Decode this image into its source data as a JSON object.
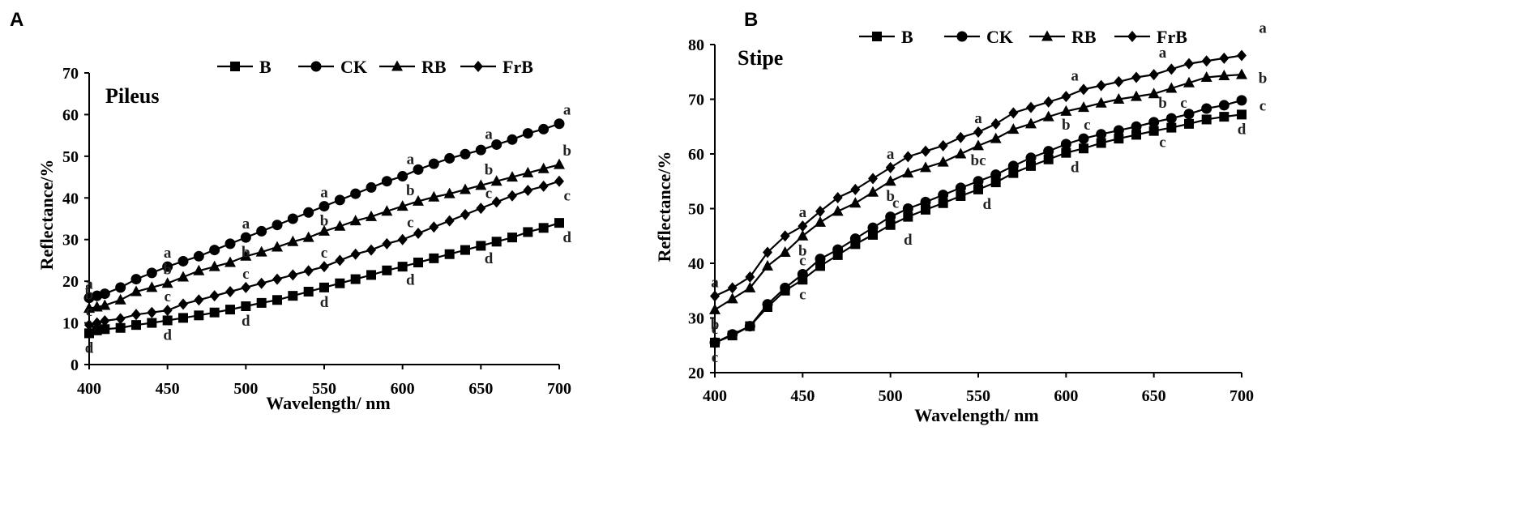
{
  "chart_data": [
    {
      "panel": "A",
      "type": "line",
      "title": "Pileus",
      "xlabel": "Wavelength/ nm",
      "ylabel": "Reflectance/%",
      "xlim": [
        400,
        700
      ],
      "ylim": [
        0,
        70
      ],
      "xticks": [
        400,
        450,
        500,
        550,
        600,
        650,
        700
      ],
      "yticks": [
        0,
        10,
        20,
        30,
        40,
        50,
        60,
        70
      ],
      "legend": [
        "B",
        "CK",
        "RB",
        "FrB"
      ],
      "legend_position": "top",
      "series": [
        {
          "name": "B",
          "marker": "square",
          "x": [
            400,
            405,
            410,
            420,
            430,
            440,
            450,
            460,
            470,
            480,
            490,
            500,
            510,
            520,
            530,
            540,
            550,
            560,
            570,
            580,
            590,
            600,
            610,
            620,
            630,
            640,
            650,
            660,
            670,
            680,
            690,
            700
          ],
          "y": [
            7.5,
            8.2,
            8.5,
            8.8,
            9.5,
            10.0,
            10.6,
            11.2,
            11.8,
            12.5,
            13.2,
            14.0,
            14.8,
            15.5,
            16.5,
            17.5,
            18.5,
            19.5,
            20.5,
            21.5,
            22.6,
            23.5,
            24.5,
            25.5,
            26.5,
            27.5,
            28.5,
            29.5,
            30.5,
            31.8,
            32.8,
            34.0
          ]
        },
        {
          "name": "CK",
          "marker": "circle",
          "x": [
            400,
            405,
            410,
            420,
            430,
            440,
            450,
            460,
            470,
            480,
            490,
            500,
            510,
            520,
            530,
            540,
            550,
            560,
            570,
            580,
            590,
            600,
            610,
            620,
            630,
            640,
            650,
            660,
            670,
            680,
            690,
            700
          ],
          "y": [
            16.0,
            16.5,
            17.0,
            18.5,
            20.5,
            22.0,
            23.5,
            24.8,
            26.0,
            27.5,
            29.0,
            30.5,
            32.0,
            33.5,
            35.0,
            36.5,
            38.0,
            39.5,
            41.0,
            42.5,
            44.0,
            45.2,
            46.8,
            48.2,
            49.5,
            50.5,
            51.5,
            52.8,
            54.0,
            55.5,
            56.5,
            57.8
          ]
        },
        {
          "name": "RB",
          "marker": "triangle",
          "x": [
            400,
            405,
            410,
            420,
            430,
            440,
            450,
            460,
            470,
            480,
            490,
            500,
            510,
            520,
            530,
            540,
            550,
            560,
            570,
            580,
            590,
            600,
            610,
            620,
            630,
            640,
            650,
            660,
            670,
            680,
            690,
            700
          ],
          "y": [
            13.5,
            13.8,
            14.2,
            15.5,
            17.5,
            18.5,
            19.5,
            21.0,
            22.5,
            23.5,
            24.5,
            26.0,
            27.0,
            28.2,
            29.5,
            30.5,
            32.0,
            33.2,
            34.5,
            35.5,
            36.8,
            38.0,
            39.2,
            40.2,
            41.0,
            42.0,
            43.0,
            44.0,
            45.0,
            46.0,
            47.0,
            48.0
          ]
        },
        {
          "name": "FrB",
          "marker": "diamond",
          "x": [
            400,
            405,
            410,
            420,
            430,
            440,
            450,
            460,
            470,
            480,
            490,
            500,
            510,
            520,
            530,
            540,
            550,
            560,
            570,
            580,
            590,
            600,
            610,
            620,
            630,
            640,
            650,
            660,
            670,
            680,
            690,
            700
          ],
          "y": [
            9.5,
            10.0,
            10.5,
            11.0,
            12.0,
            12.5,
            13.0,
            14.5,
            15.5,
            16.5,
            17.5,
            18.5,
            19.5,
            20.5,
            21.5,
            22.5,
            23.5,
            25.0,
            26.5,
            27.5,
            29.0,
            30.0,
            31.5,
            33.0,
            34.5,
            36.0,
            37.5,
            39.0,
            40.5,
            41.8,
            42.8,
            44.0
          ]
        }
      ],
      "annotations": [
        {
          "x": 400,
          "y": 16.0,
          "label": "a",
          "pos": "above"
        },
        {
          "x": 400,
          "y": 13.5,
          "label": "b",
          "pos": "above"
        },
        {
          "x": 400,
          "y": 9.5,
          "label": "c",
          "pos": "above"
        },
        {
          "x": 400,
          "y": 7.5,
          "label": "d",
          "pos": "below"
        },
        {
          "x": 450,
          "y": 23.5,
          "label": "a",
          "pos": "above"
        },
        {
          "x": 450,
          "y": 19.5,
          "label": "b",
          "pos": "above"
        },
        {
          "x": 450,
          "y": 13.0,
          "label": "c",
          "pos": "above"
        },
        {
          "x": 450,
          "y": 10.6,
          "label": "d",
          "pos": "below"
        },
        {
          "x": 500,
          "y": 30.5,
          "label": "a",
          "pos": "above"
        },
        {
          "x": 500,
          "y": 30.5,
          "label": "b",
          "pos": "below"
        },
        {
          "x": 500,
          "y": 18.5,
          "label": "c",
          "pos": "above"
        },
        {
          "x": 500,
          "y": 14.0,
          "label": "d",
          "pos": "below"
        },
        {
          "x": 550,
          "y": 38.0,
          "label": "a",
          "pos": "above"
        },
        {
          "x": 550,
          "y": 38.0,
          "label": "b",
          "pos": "below"
        },
        {
          "x": 550,
          "y": 23.5,
          "label": "c",
          "pos": "above"
        },
        {
          "x": 550,
          "y": 18.5,
          "label": "d",
          "pos": "below"
        },
        {
          "x": 605,
          "y": 46.0,
          "label": "a",
          "pos": "above"
        },
        {
          "x": 605,
          "y": 38.5,
          "label": "b",
          "pos": "above"
        },
        {
          "x": 605,
          "y": 30.8,
          "label": "c",
          "pos": "above"
        },
        {
          "x": 605,
          "y": 23.8,
          "label": "d",
          "pos": "below"
        },
        {
          "x": 655,
          "y": 52.0,
          "label": "a",
          "pos": "above"
        },
        {
          "x": 655,
          "y": 43.5,
          "label": "b",
          "pos": "above"
        },
        {
          "x": 655,
          "y": 37.8,
          "label": "c",
          "pos": "above"
        },
        {
          "x": 655,
          "y": 29.0,
          "label": "d",
          "pos": "below"
        },
        {
          "x": 705,
          "y": 57.8,
          "label": "a",
          "pos": "above"
        },
        {
          "x": 705,
          "y": 48.0,
          "label": "b",
          "pos": "above"
        },
        {
          "x": 705,
          "y": 44.0,
          "label": "c",
          "pos": "below"
        },
        {
          "x": 705,
          "y": 34.0,
          "label": "d",
          "pos": "below"
        }
      ]
    },
    {
      "panel": "B",
      "type": "line",
      "title": "Stipe",
      "xlabel": "Wavelength/ nm",
      "ylabel": "Reflectance/%",
      "xlim": [
        400,
        700
      ],
      "ylim": [
        20,
        80
      ],
      "xticks": [
        400,
        450,
        500,
        550,
        600,
        650,
        700
      ],
      "yticks": [
        20,
        30,
        40,
        50,
        60,
        70,
        80
      ],
      "legend": [
        "B",
        "CK",
        "RB",
        "FrB"
      ],
      "legend_position": "top",
      "series": [
        {
          "name": "B",
          "marker": "square",
          "x": [
            400,
            410,
            420,
            430,
            440,
            450,
            460,
            470,
            480,
            490,
            500,
            510,
            520,
            530,
            540,
            550,
            560,
            570,
            580,
            590,
            600,
            610,
            620,
            630,
            640,
            650,
            660,
            670,
            680,
            690,
            700
          ],
          "y": [
            25.5,
            26.8,
            28.5,
            32.0,
            35.0,
            37.0,
            39.5,
            41.5,
            43.5,
            45.2,
            47.0,
            48.5,
            49.8,
            51.0,
            52.3,
            53.5,
            54.8,
            56.5,
            57.8,
            59.0,
            60.2,
            61.0,
            62.0,
            62.8,
            63.5,
            64.2,
            64.8,
            65.5,
            66.3,
            66.8,
            67.2
          ]
        },
        {
          "name": "CK",
          "marker": "circle",
          "x": [
            400,
            410,
            420,
            430,
            440,
            450,
            460,
            470,
            480,
            490,
            500,
            510,
            520,
            530,
            540,
            550,
            560,
            570,
            580,
            590,
            600,
            610,
            620,
            630,
            640,
            650,
            660,
            670,
            680,
            690,
            700
          ],
          "y": [
            25.5,
            27.0,
            28.5,
            32.5,
            35.5,
            38.0,
            40.8,
            42.5,
            44.5,
            46.5,
            48.5,
            50.0,
            51.2,
            52.5,
            53.8,
            55.0,
            56.2,
            57.8,
            59.3,
            60.5,
            61.8,
            62.8,
            63.6,
            64.3,
            65.0,
            65.8,
            66.5,
            67.3,
            68.3,
            68.9,
            69.8
          ]
        },
        {
          "name": "RB",
          "marker": "triangle",
          "x": [
            400,
            410,
            420,
            430,
            440,
            450,
            460,
            470,
            480,
            490,
            500,
            510,
            520,
            530,
            540,
            550,
            560,
            570,
            580,
            590,
            600,
            610,
            620,
            630,
            640,
            650,
            660,
            670,
            680,
            690,
            700
          ],
          "y": [
            31.5,
            33.5,
            35.5,
            39.5,
            42.0,
            45.0,
            47.5,
            49.5,
            51.0,
            53.0,
            55.0,
            56.5,
            57.5,
            58.5,
            60.0,
            61.5,
            62.8,
            64.5,
            65.5,
            66.8,
            67.8,
            68.5,
            69.3,
            70.0,
            70.5,
            71.0,
            72.0,
            73.0,
            74.0,
            74.3,
            74.5
          ]
        },
        {
          "name": "FrB",
          "marker": "diamond",
          "x": [
            400,
            410,
            420,
            430,
            440,
            450,
            460,
            470,
            480,
            490,
            500,
            510,
            520,
            530,
            540,
            550,
            560,
            570,
            580,
            590,
            600,
            610,
            620,
            630,
            640,
            650,
            660,
            670,
            680,
            690,
            700
          ],
          "y": [
            34.0,
            35.5,
            37.5,
            42.0,
            45.0,
            46.8,
            49.5,
            52.0,
            53.5,
            55.5,
            57.5,
            59.5,
            60.5,
            61.5,
            63.0,
            64.0,
            65.5,
            67.5,
            68.5,
            69.5,
            70.5,
            71.8,
            72.5,
            73.2,
            74.0,
            74.5,
            75.5,
            76.5,
            77.0,
            77.5,
            78.0
          ]
        }
      ],
      "annotations": [
        {
          "x": 400,
          "y": 34.0,
          "label": "a",
          "pos": "above"
        },
        {
          "x": 400,
          "y": 31.5,
          "label": "b",
          "pos": "below"
        },
        {
          "x": 400,
          "y": 25.5,
          "label": "c",
          "pos": "above"
        },
        {
          "x": 400,
          "y": 25.5,
          "label": "c",
          "pos": "below"
        },
        {
          "x": 450,
          "y": 46.8,
          "label": "a",
          "pos": "above"
        },
        {
          "x": 450,
          "y": 45.0,
          "label": "b",
          "pos": "below"
        },
        {
          "x": 450,
          "y": 38.0,
          "label": "c",
          "pos": "above"
        },
        {
          "x": 450,
          "y": 37.0,
          "label": "c",
          "pos": "below"
        },
        {
          "x": 500,
          "y": 57.5,
          "label": "a",
          "pos": "above"
        },
        {
          "x": 500,
          "y": 55.0,
          "label": "b",
          "pos": "below"
        },
        {
          "x": 503,
          "y": 48.5,
          "label": "c",
          "pos": "above"
        },
        {
          "x": 510,
          "y": 47.0,
          "label": "d",
          "pos": "below"
        },
        {
          "x": 550,
          "y": 64.0,
          "label": "a",
          "pos": "above"
        },
        {
          "x": 550,
          "y": 61.5,
          "label": "bc",
          "pos": "below"
        },
        {
          "x": 555,
          "y": 53.5,
          "label": "d",
          "pos": "below"
        },
        {
          "x": 605,
          "y": 71.8,
          "label": "a",
          "pos": "above"
        },
        {
          "x": 600,
          "y": 68.0,
          "label": "b",
          "pos": "below"
        },
        {
          "x": 612,
          "y": 68.0,
          "label": "c",
          "pos": "below"
        },
        {
          "x": 605,
          "y": 60.2,
          "label": "d",
          "pos": "below"
        },
        {
          "x": 655,
          "y": 76.0,
          "label": "a",
          "pos": "above"
        },
        {
          "x": 655,
          "y": 72.0,
          "label": "b",
          "pos": "below"
        },
        {
          "x": 667,
          "y": 72.0,
          "label": "c",
          "pos": "below"
        },
        {
          "x": 655,
          "y": 64.8,
          "label": "c",
          "pos": "below"
        },
        {
          "x": 712,
          "y": 80.5,
          "label": "a",
          "pos": "above"
        },
        {
          "x": 712,
          "y": 76.5,
          "label": "b",
          "pos": "below"
        },
        {
          "x": 712,
          "y": 71.5,
          "label": "c",
          "pos": "below"
        },
        {
          "x": 700,
          "y": 67.2,
          "label": "d",
          "pos": "below"
        }
      ]
    }
  ]
}
